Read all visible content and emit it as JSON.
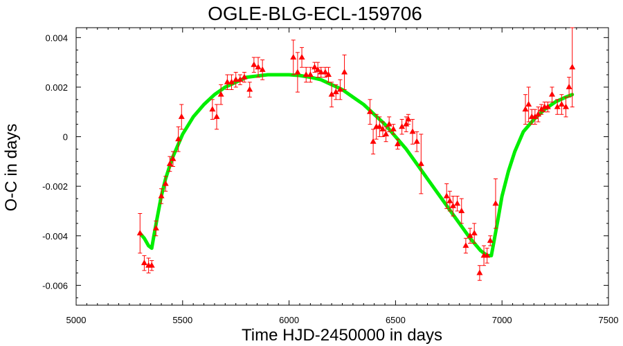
{
  "chart_data": {
    "type": "scatter",
    "title": "OGLE-BLG-ECL-159706",
    "xlabel": "Time HJD-2450000 in days",
    "ylabel": "O-C in days",
    "xlim": [
      5000,
      7500
    ],
    "ylim": [
      -0.0068,
      0.0044
    ],
    "x_ticks": [
      5000,
      5500,
      6000,
      6500,
      7000,
      7500
    ],
    "x_tick_labels": [
      "5000",
      "5500",
      "6000",
      "6500",
      "7000",
      "7500"
    ],
    "y_ticks": [
      -0.006,
      -0.004,
      -0.002,
      0,
      0.002,
      0.004
    ],
    "y_tick_labels": [
      "-0.006",
      "-0.004",
      "-0.002",
      "0",
      "0.002",
      "0.004"
    ],
    "grid": false,
    "series": [
      {
        "kind": "points",
        "color": "#ff0000",
        "marker": "triangle",
        "points": [
          {
            "x": 5300,
            "y": -0.0039,
            "err": 0.0008
          },
          {
            "x": 5320,
            "y": -0.0051,
            "err": 0.0003
          },
          {
            "x": 5340,
            "y": -0.0052,
            "err": 0.0003
          },
          {
            "x": 5355,
            "y": -0.0052,
            "err": 0.0002
          },
          {
            "x": 5375,
            "y": -0.0037,
            "err": 0.0003
          },
          {
            "x": 5400,
            "y": -0.0024,
            "err": 0.0003
          },
          {
            "x": 5420,
            "y": -0.0019,
            "err": 0.0003
          },
          {
            "x": 5440,
            "y": -0.0011,
            "err": 0.0003
          },
          {
            "x": 5455,
            "y": -0.0009,
            "err": 0.0003
          },
          {
            "x": 5480,
            "y": -0.0001,
            "err": 0.0005
          },
          {
            "x": 5495,
            "y": 0.0008,
            "err": 0.0005
          },
          {
            "x": 5640,
            "y": 0.0011,
            "err": 0.0004
          },
          {
            "x": 5660,
            "y": 0.0008,
            "err": 0.0005
          },
          {
            "x": 5680,
            "y": 0.0017,
            "err": 0.0004
          },
          {
            "x": 5710,
            "y": 0.0022,
            "err": 0.0003
          },
          {
            "x": 5730,
            "y": 0.0022,
            "err": 0.0003
          },
          {
            "x": 5750,
            "y": 0.0023,
            "err": 0.0003
          },
          {
            "x": 5770,
            "y": 0.0023,
            "err": 0.0002
          },
          {
            "x": 5790,
            "y": 0.0024,
            "err": 0.0002
          },
          {
            "x": 5815,
            "y": 0.0019,
            "err": 0.0003
          },
          {
            "x": 5835,
            "y": 0.0029,
            "err": 0.0003
          },
          {
            "x": 5855,
            "y": 0.0028,
            "err": 0.0004
          },
          {
            "x": 5875,
            "y": 0.0027,
            "err": 0.0004
          },
          {
            "x": 6020,
            "y": 0.0032,
            "err": 0.0007
          },
          {
            "x": 6040,
            "y": 0.0026,
            "err": 0.0008
          },
          {
            "x": 6060,
            "y": 0.0032,
            "err": 0.0004
          },
          {
            "x": 6080,
            "y": 0.0025,
            "err": 0.0003
          },
          {
            "x": 6100,
            "y": 0.0025,
            "err": 0.0003
          },
          {
            "x": 6120,
            "y": 0.0028,
            "err": 0.0002
          },
          {
            "x": 6135,
            "y": 0.0027,
            "err": 0.0003
          },
          {
            "x": 6150,
            "y": 0.0026,
            "err": 0.0002
          },
          {
            "x": 6170,
            "y": 0.0026,
            "err": 0.0002
          },
          {
            "x": 6185,
            "y": 0.0025,
            "err": 0.0003
          },
          {
            "x": 6200,
            "y": 0.0017,
            "err": 0.0005
          },
          {
            "x": 6220,
            "y": 0.0018,
            "err": 0.0003
          },
          {
            "x": 6240,
            "y": 0.0019,
            "err": 0.0004
          },
          {
            "x": 6260,
            "y": 0.0026,
            "err": 0.0007
          },
          {
            "x": 6380,
            "y": 0.001,
            "err": 0.0005
          },
          {
            "x": 6395,
            "y": -0.0002,
            "err": 0.0005
          },
          {
            "x": 6410,
            "y": 0.0004,
            "err": 0.0005
          },
          {
            "x": 6425,
            "y": 0.0004,
            "err": 0.0004
          },
          {
            "x": 6440,
            "y": 0.0003,
            "err": 0.0003
          },
          {
            "x": 6455,
            "y": 0.0001,
            "err": 0.0003
          },
          {
            "x": 6470,
            "y": 0.0005,
            "err": 0.0003
          },
          {
            "x": 6490,
            "y": 0.0003,
            "err": 0.0002
          },
          {
            "x": 6510,
            "y": -0.0003,
            "err": 0.0002
          },
          {
            "x": 6530,
            "y": 0.0004,
            "err": 0.0003
          },
          {
            "x": 6550,
            "y": 0.0005,
            "err": 0.0003
          },
          {
            "x": 6560,
            "y": 0.0007,
            "err": 0.0002
          },
          {
            "x": 6580,
            "y": 0.0002,
            "err": 0.0005
          },
          {
            "x": 6600,
            "y": -0.0002,
            "err": 0.0004
          },
          {
            "x": 6620,
            "y": -0.0011,
            "err": 0.0012
          },
          {
            "x": 6740,
            "y": -0.0024,
            "err": 0.0005
          },
          {
            "x": 6755,
            "y": -0.0026,
            "err": 0.0004
          },
          {
            "x": 6770,
            "y": -0.0028,
            "err": 0.0004
          },
          {
            "x": 6790,
            "y": -0.0027,
            "err": 0.0003
          },
          {
            "x": 6810,
            "y": -0.003,
            "err": 0.0005
          },
          {
            "x": 6830,
            "y": -0.0044,
            "err": 0.0003
          },
          {
            "x": 6850,
            "y": -0.004,
            "err": 0.0003
          },
          {
            "x": 6870,
            "y": -0.0039,
            "err": 0.0004
          },
          {
            "x": 6895,
            "y": -0.0055,
            "err": 0.0003
          },
          {
            "x": 6915,
            "y": -0.0048,
            "err": 0.0004
          },
          {
            "x": 6930,
            "y": -0.0048,
            "err": 0.0003
          },
          {
            "x": 6945,
            "y": -0.0042,
            "err": 0.0002
          },
          {
            "x": 6970,
            "y": -0.0027,
            "err": 0.001
          },
          {
            "x": 7110,
            "y": 0.0011,
            "err": 0.0006
          },
          {
            "x": 7125,
            "y": 0.0013,
            "err": 0.0007
          },
          {
            "x": 7140,
            "y": 0.0008,
            "err": 0.0003
          },
          {
            "x": 7155,
            "y": 0.0008,
            "err": 0.0003
          },
          {
            "x": 7170,
            "y": 0.0009,
            "err": 0.0003
          },
          {
            "x": 7185,
            "y": 0.0011,
            "err": 0.0002
          },
          {
            "x": 7200,
            "y": 0.0012,
            "err": 0.0002
          },
          {
            "x": 7215,
            "y": 0.0012,
            "err": 0.0002
          },
          {
            "x": 7235,
            "y": 0.0017,
            "err": 0.0003
          },
          {
            "x": 7260,
            "y": 0.0012,
            "err": 0.0003
          },
          {
            "x": 7280,
            "y": 0.0013,
            "err": 0.0004
          },
          {
            "x": 7300,
            "y": 0.0012,
            "err": 0.0004
          },
          {
            "x": 7315,
            "y": 0.002,
            "err": 0.0004
          },
          {
            "x": 7330,
            "y": 0.0028,
            "err": 0.0016
          }
        ]
      },
      {
        "kind": "line",
        "color": "#00ee00",
        "points": [
          [
            5300,
            -0.0039
          ],
          [
            5320,
            -0.0041
          ],
          [
            5340,
            -0.0044
          ],
          [
            5355,
            -0.0045
          ],
          [
            5365,
            -0.004
          ],
          [
            5380,
            -0.0033
          ],
          [
            5400,
            -0.0024
          ],
          [
            5420,
            -0.0017
          ],
          [
            5450,
            -0.0009
          ],
          [
            5500,
            0.0001
          ],
          [
            5550,
            0.0008
          ],
          [
            5600,
            0.0013
          ],
          [
            5650,
            0.0017
          ],
          [
            5700,
            0.002
          ],
          [
            5750,
            0.0022
          ],
          [
            5800,
            0.0024
          ],
          [
            5850,
            0.00245
          ],
          [
            5900,
            0.0025
          ],
          [
            5950,
            0.0025
          ],
          [
            6000,
            0.0025
          ],
          [
            6050,
            0.00247
          ],
          [
            6100,
            0.0024
          ],
          [
            6150,
            0.0023
          ],
          [
            6200,
            0.0021
          ],
          [
            6250,
            0.0019
          ],
          [
            6300,
            0.0016
          ],
          [
            6350,
            0.0013
          ],
          [
            6400,
            0.0009
          ],
          [
            6450,
            0.0005
          ],
          [
            6500,
            0.0
          ],
          [
            6550,
            -0.0005
          ],
          [
            6600,
            -0.0011
          ],
          [
            6650,
            -0.0017
          ],
          [
            6700,
            -0.0023
          ],
          [
            6750,
            -0.0029
          ],
          [
            6800,
            -0.0035
          ],
          [
            6850,
            -0.0041
          ],
          [
            6900,
            -0.0046
          ],
          [
            6930,
            -0.0048
          ],
          [
            6950,
            -0.0048
          ],
          [
            6965,
            -0.0041
          ],
          [
            6980,
            -0.0034
          ],
          [
            7000,
            -0.0024
          ],
          [
            7030,
            -0.0014
          ],
          [
            7060,
            -0.0006
          ],
          [
            7100,
            0.0002
          ],
          [
            7150,
            0.0007
          ],
          [
            7200,
            0.0011
          ],
          [
            7250,
            0.0014
          ],
          [
            7300,
            0.0016
          ],
          [
            7330,
            0.0017
          ]
        ]
      }
    ]
  }
}
